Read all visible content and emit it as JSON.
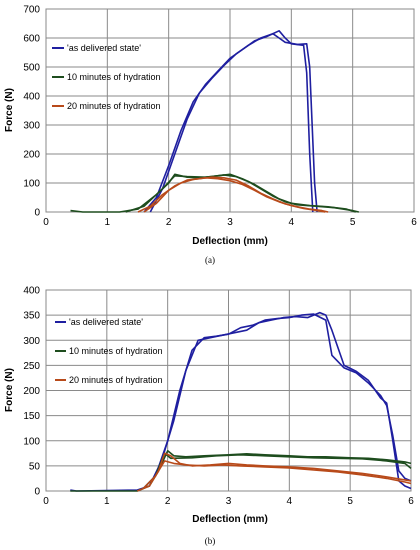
{
  "chart_data": [
    {
      "type": "line",
      "caption": "(a)",
      "xlabel": "Deflection (mm)",
      "ylabel": "Force (N)",
      "xlim": [
        0,
        6
      ],
      "ylim": [
        0,
        700
      ],
      "xticks": [
        0,
        1,
        2,
        3,
        4,
        5,
        6
      ],
      "yticks": [
        0,
        100,
        200,
        300,
        400,
        500,
        600,
        700
      ],
      "grid": true,
      "legend_position": "top-left",
      "series": [
        {
          "name": "'as delivered state'",
          "color": "#1f1fa0",
          "lines": [
            [
              [
                1.6,
                0
              ],
              [
                1.8,
                50
              ],
              [
                2.0,
                160
              ],
              [
                2.2,
                280
              ],
              [
                2.4,
                380
              ],
              [
                2.6,
                440
              ],
              [
                2.8,
                485
              ],
              [
                3.0,
                530
              ],
              [
                3.2,
                560
              ],
              [
                3.4,
                590
              ],
              [
                3.6,
                605
              ],
              [
                3.8,
                625
              ],
              [
                3.9,
                600
              ],
              [
                4.0,
                580
              ],
              [
                4.2,
                575
              ],
              [
                4.25,
                480
              ],
              [
                4.3,
                200
              ],
              [
                4.35,
                0
              ]
            ],
            [
              [
                1.7,
                0
              ],
              [
                1.9,
                80
              ],
              [
                2.1,
                200
              ],
              [
                2.3,
                320
              ],
              [
                2.5,
                410
              ],
              [
                2.7,
                460
              ],
              [
                2.9,
                505
              ],
              [
                3.1,
                545
              ],
              [
                3.3,
                575
              ],
              [
                3.5,
                600
              ],
              [
                3.7,
                615
              ],
              [
                3.8,
                600
              ],
              [
                3.9,
                585
              ],
              [
                4.1,
                578
              ],
              [
                4.25,
                580
              ],
              [
                4.3,
                500
              ],
              [
                4.38,
                100
              ],
              [
                4.42,
                0
              ]
            ]
          ]
        },
        {
          "name": "10 minutes of hydration",
          "color": "#1e4d1e",
          "lines": [
            [
              [
                0.4,
                5
              ],
              [
                0.6,
                0
              ],
              [
                1.2,
                0
              ],
              [
                1.5,
                10
              ],
              [
                1.8,
                60
              ],
              [
                2.0,
                100
              ],
              [
                2.1,
                130
              ],
              [
                2.3,
                120
              ],
              [
                2.5,
                118
              ],
              [
                2.7,
                122
              ],
              [
                2.9,
                128
              ],
              [
                3.1,
                122
              ],
              [
                3.3,
                105
              ],
              [
                3.5,
                80
              ],
              [
                3.7,
                55
              ],
              [
                3.9,
                35
              ],
              [
                4.1,
                25
              ],
              [
                4.4,
                20
              ],
              [
                4.7,
                15
              ],
              [
                5.0,
                5
              ],
              [
                5.1,
                0
              ]
            ],
            [
              [
                1.3,
                0
              ],
              [
                1.6,
                20
              ],
              [
                1.9,
                80
              ],
              [
                2.1,
                125
              ],
              [
                2.3,
                122
              ],
              [
                2.6,
                120
              ],
              [
                2.8,
                125
              ],
              [
                3.0,
                130
              ],
              [
                3.2,
                115
              ],
              [
                3.4,
                95
              ],
              [
                3.6,
                70
              ],
              [
                3.8,
                45
              ],
              [
                4.0,
                30
              ],
              [
                4.3,
                22
              ],
              [
                4.6,
                18
              ],
              [
                4.9,
                10
              ],
              [
                5.05,
                0
              ]
            ]
          ]
        },
        {
          "name": "20 minutes of hydration",
          "color": "#b84a1a",
          "lines": [
            [
              [
                1.5,
                0
              ],
              [
                1.7,
                20
              ],
              [
                1.9,
                60
              ],
              [
                2.1,
                90
              ],
              [
                2.3,
                110
              ],
              [
                2.5,
                115
              ],
              [
                2.7,
                120
              ],
              [
                2.9,
                118
              ],
              [
                3.1,
                110
              ],
              [
                3.3,
                90
              ],
              [
                3.5,
                65
              ],
              [
                3.7,
                45
              ],
              [
                3.9,
                28
              ],
              [
                4.1,
                18
              ],
              [
                4.3,
                10
              ],
              [
                4.5,
                5
              ],
              [
                4.6,
                0
              ]
            ],
            [
              [
                1.6,
                0
              ],
              [
                1.8,
                30
              ],
              [
                2.0,
                75
              ],
              [
                2.2,
                100
              ],
              [
                2.4,
                112
              ],
              [
                2.6,
                118
              ],
              [
                2.8,
                115
              ],
              [
                3.0,
                108
              ],
              [
                3.2,
                95
              ],
              [
                3.4,
                75
              ],
              [
                3.6,
                52
              ],
              [
                3.8,
                35
              ],
              [
                4.0,
                22
              ],
              [
                4.2,
                12
              ],
              [
                4.4,
                6
              ],
              [
                4.55,
                0
              ]
            ]
          ]
        }
      ]
    },
    {
      "type": "line",
      "caption": "(b)",
      "xlabel": "Deflection (mm)",
      "ylabel": "Force (N)",
      "xlim": [
        0,
        6
      ],
      "ylim": [
        0,
        400
      ],
      "xticks": [
        0,
        1,
        2,
        3,
        4,
        5,
        6
      ],
      "yticks": [
        0,
        50,
        100,
        150,
        200,
        250,
        300,
        350,
        400
      ],
      "grid": true,
      "legend_position": "top-left",
      "series": [
        {
          "name": "'as delivered state'",
          "color": "#1f1fa0",
          "lines": [
            [
              [
                0.4,
                2
              ],
              [
                0.5,
                0
              ],
              [
                1.5,
                2
              ],
              [
                1.7,
                10
              ],
              [
                1.9,
                60
              ],
              [
                2.1,
                140
              ],
              [
                2.3,
                240
              ],
              [
                2.5,
                300
              ],
              [
                2.7,
                305
              ],
              [
                2.9,
                310
              ],
              [
                3.1,
                315
              ],
              [
                3.3,
                320
              ],
              [
                3.5,
                335
              ],
              [
                3.7,
                340
              ],
              [
                3.9,
                345
              ],
              [
                4.1,
                347
              ],
              [
                4.3,
                345
              ],
              [
                4.5,
                355
              ],
              [
                4.6,
                350
              ],
              [
                4.7,
                320
              ],
              [
                4.9,
                250
              ],
              [
                5.1,
                238
              ],
              [
                5.3,
                220
              ],
              [
                5.5,
                185
              ],
              [
                5.6,
                175
              ],
              [
                5.7,
                100
              ],
              [
                5.8,
                20
              ],
              [
                5.9,
                10
              ],
              [
                6.0,
                5
              ]
            ],
            [
              [
                1.6,
                5
              ],
              [
                1.8,
                30
              ],
              [
                2.0,
                100
              ],
              [
                2.2,
                200
              ],
              [
                2.4,
                280
              ],
              [
                2.6,
                305
              ],
              [
                2.8,
                308
              ],
              [
                3.0,
                312
              ],
              [
                3.2,
                325
              ],
              [
                3.4,
                330
              ],
              [
                3.6,
                340
              ],
              [
                3.8,
                343
              ],
              [
                4.0,
                345
              ],
              [
                4.2,
                350
              ],
              [
                4.4,
                352
              ],
              [
                4.6,
                340
              ],
              [
                4.7,
                270
              ],
              [
                4.9,
                245
              ],
              [
                5.1,
                235
              ],
              [
                5.3,
                215
              ],
              [
                5.5,
                190
              ],
              [
                5.6,
                170
              ],
              [
                5.7,
                110
              ],
              [
                5.8,
                40
              ],
              [
                5.9,
                25
              ],
              [
                6.0,
                20
              ]
            ]
          ]
        },
        {
          "name": "10 minutes of hydration",
          "color": "#1e4d1e",
          "lines": [
            [
              [
                0.4,
                0
              ],
              [
                1.5,
                0
              ],
              [
                1.7,
                10
              ],
              [
                1.85,
                40
              ],
              [
                2.0,
                80
              ],
              [
                2.1,
                70
              ],
              [
                2.3,
                68
              ],
              [
                2.6,
                70
              ],
              [
                3.0,
                72
              ],
              [
                3.3,
                74
              ],
              [
                3.6,
                72
              ],
              [
                4.0,
                70
              ],
              [
                4.3,
                68
              ],
              [
                4.6,
                68
              ],
              [
                5.0,
                66
              ],
              [
                5.3,
                65
              ],
              [
                5.6,
                62
              ],
              [
                5.9,
                58
              ],
              [
                6.0,
                55
              ]
            ],
            [
              [
                1.6,
                5
              ],
              [
                1.8,
                30
              ],
              [
                1.95,
                75
              ],
              [
                2.05,
                65
              ],
              [
                2.4,
                66
              ],
              [
                2.8,
                70
              ],
              [
                3.2,
                72
              ],
              [
                3.6,
                70
              ],
              [
                4.0,
                68
              ],
              [
                4.4,
                66
              ],
              [
                4.8,
                65
              ],
              [
                5.2,
                64
              ],
              [
                5.6,
                60
              ],
              [
                5.9,
                55
              ],
              [
                6.0,
                45
              ]
            ]
          ]
        },
        {
          "name": "20 minutes of hydration",
          "color": "#b84a1a",
          "lines": [
            [
              [
                1.5,
                0
              ],
              [
                1.7,
                10
              ],
              [
                1.85,
                40
              ],
              [
                1.95,
                75
              ],
              [
                2.05,
                70
              ],
              [
                2.2,
                55
              ],
              [
                2.4,
                50
              ],
              [
                2.7,
                52
              ],
              [
                3.0,
                55
              ],
              [
                3.3,
                52
              ],
              [
                3.6,
                50
              ],
              [
                4.0,
                48
              ],
              [
                4.4,
                45
              ],
              [
                4.8,
                40
              ],
              [
                5.2,
                35
              ],
              [
                5.6,
                28
              ],
              [
                5.9,
                22
              ],
              [
                6.0,
                20
              ]
            ],
            [
              [
                1.6,
                5
              ],
              [
                1.8,
                30
              ],
              [
                1.95,
                60
              ],
              [
                2.1,
                55
              ],
              [
                2.3,
                52
              ],
              [
                2.6,
                50
              ],
              [
                2.9,
                52
              ],
              [
                3.2,
                50
              ],
              [
                3.6,
                48
              ],
              [
                4.0,
                46
              ],
              [
                4.4,
                42
              ],
              [
                4.8,
                38
              ],
              [
                5.2,
                32
              ],
              [
                5.6,
                25
              ],
              [
                5.9,
                18
              ],
              [
                6.0,
                15
              ]
            ]
          ]
        }
      ]
    }
  ]
}
